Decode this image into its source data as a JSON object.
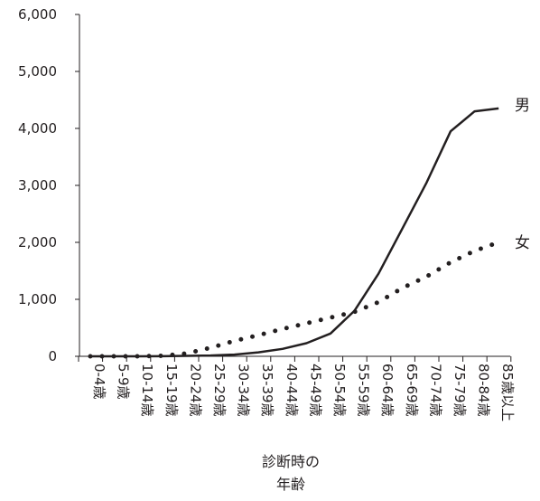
{
  "chart_data": {
    "type": "line",
    "title": "",
    "xlabel": [
      "診断時の",
      "年齢"
    ],
    "ylabel": "",
    "ylim": [
      0,
      6000
    ],
    "y_ticks": [
      0,
      1000,
      2000,
      3000,
      4000,
      5000,
      6000
    ],
    "y_tick_labels": [
      "0",
      "1,000",
      "2,000",
      "3,000",
      "4,000",
      "5,000",
      "6,000"
    ],
    "grid": false,
    "categories": [
      "0-4歳",
      "5-9歳",
      "10-14歳",
      "15-19歳",
      "20-24歳",
      "25-29歳",
      "30-34歳",
      "35-39歳",
      "40-44歳",
      "45-49歳",
      "50-54歳",
      "55-59歳",
      "60-64歳",
      "65-69歳",
      "70-74歳",
      "75-79歳",
      "80-84歳",
      "85歳以上"
    ],
    "series": [
      {
        "name": "男",
        "style": "solid",
        "color": "#231f20",
        "values": [
          0,
          0,
          0,
          2,
          8,
          15,
          30,
          70,
          130,
          230,
          400,
          800,
          1450,
          2250,
          3050,
          3950,
          4300,
          4350
        ]
      },
      {
        "name": "女",
        "style": "dotted",
        "color": "#231f20",
        "values": [
          0,
          0,
          0,
          8,
          50,
          150,
          270,
          370,
          480,
          580,
          680,
          780,
          950,
          1200,
          1400,
          1650,
          1850,
          2000
        ]
      }
    ]
  }
}
